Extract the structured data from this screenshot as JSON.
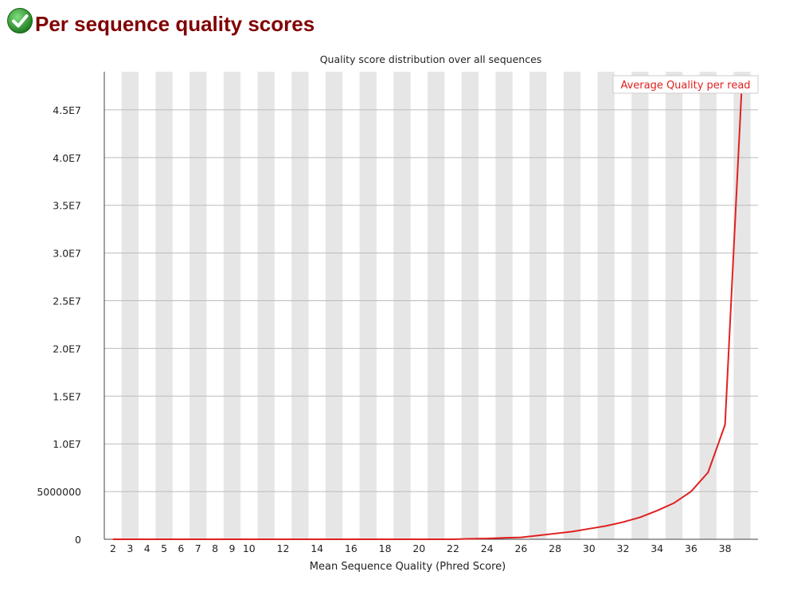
{
  "page": {
    "title": "Per sequence quality scores",
    "status_icon": "pass-check-icon"
  },
  "colors": {
    "title": "#800000",
    "line": "#e02020",
    "stripe": "#e6e6e6",
    "grid": "#bbbbbb",
    "check": "#2e9a2e"
  },
  "chart_data": {
    "type": "line",
    "title": "Quality score distribution over all sequences",
    "xlabel": "Mean Sequence Quality (Phred Score)",
    "ylabel": "",
    "x_tick_labels": [
      "2",
      "3",
      "4",
      "5",
      "6",
      "7",
      "8",
      "9",
      "10",
      "12",
      "14",
      "16",
      "18",
      "20",
      "22",
      "24",
      "26",
      "28",
      "30",
      "32",
      "34",
      "36",
      "38"
    ],
    "y_tick_labels": [
      "0",
      "5000000",
      "1.0E7",
      "1.5E7",
      "2.0E7",
      "2.5E7",
      "3.0E7",
      "3.5E7",
      "4.0E7",
      "4.5E7"
    ],
    "ylim": [
      0,
      49000000
    ],
    "xlim": [
      2,
      39
    ],
    "grid": true,
    "legend_position": "top-right",
    "series": [
      {
        "name": "Average Quality per read",
        "color": "#e02020",
        "x": [
          2,
          3,
          4,
          5,
          6,
          7,
          8,
          9,
          10,
          11,
          12,
          13,
          14,
          15,
          16,
          17,
          18,
          19,
          20,
          21,
          22,
          23,
          24,
          25,
          26,
          27,
          28,
          29,
          30,
          31,
          32,
          33,
          34,
          35,
          36,
          37,
          38,
          39
        ],
        "values": [
          0,
          0,
          0,
          0,
          0,
          0,
          0,
          0,
          0,
          0,
          0,
          0,
          0,
          0,
          0,
          0,
          0,
          0,
          0,
          0,
          0,
          50000,
          80000,
          150000,
          200000,
          400000,
          600000,
          800000,
          1100000,
          1400000,
          1800000,
          2300000,
          3000000,
          3800000,
          5000000,
          7000000,
          12000000,
          48000000
        ]
      }
    ]
  }
}
